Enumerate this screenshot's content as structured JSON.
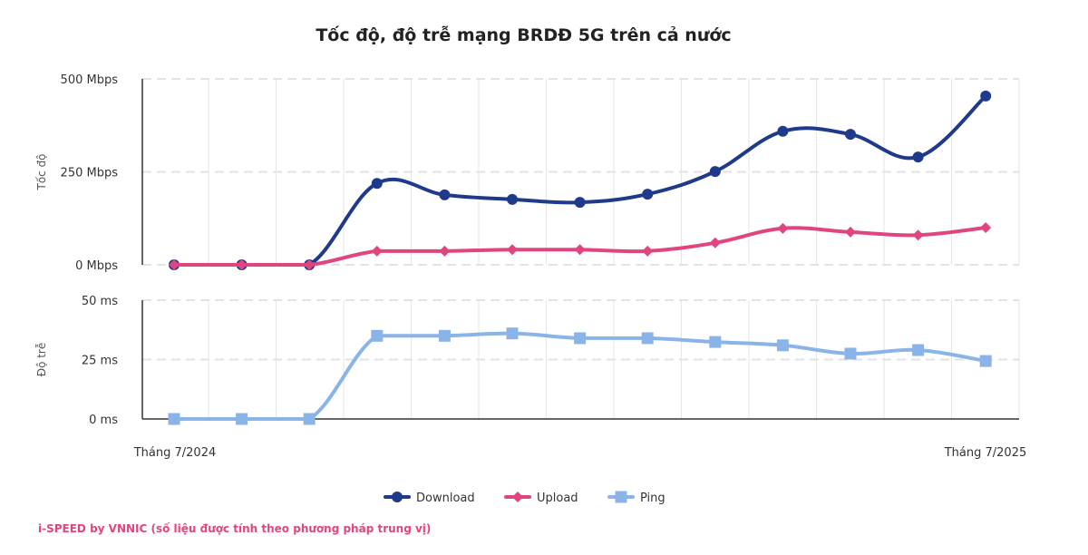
{
  "chart_data": {
    "type": "line",
    "title": "Tốc độ, độ trễ mạng BRDĐ 5G trên cả nước",
    "x_tick_labels": {
      "first": "Tháng 7/2024",
      "last": "Tháng 7/2025"
    },
    "point_count": 13,
    "panels": [
      {
        "ylabel": "Tốc độ",
        "ylim": [
          0,
          500
        ],
        "y_ticks": [
          {
            "value": 0,
            "label": "0 Mbps"
          },
          {
            "value": 250,
            "label": "250 Mbps"
          },
          {
            "value": 500,
            "label": "500 Mbps"
          }
        ],
        "series": [
          {
            "name": "Download",
            "color": "#1f3a8a",
            "marker": "circle",
            "values": [
              0,
              0,
              0,
              219,
              188,
              176,
              168,
              190,
              251,
              359,
              351,
              290,
              454
            ]
          },
          {
            "name": "Upload",
            "color": "#e0457f",
            "marker": "diamond",
            "values": [
              0,
              0,
              0,
              37,
              37,
              41,
              41,
              37,
              59,
              98,
              88,
              80,
              100
            ]
          }
        ]
      },
      {
        "ylabel": "Độ trễ",
        "ylim": [
          0,
          50
        ],
        "y_ticks": [
          {
            "value": 0,
            "label": "0 ms"
          },
          {
            "value": 25,
            "label": "25 ms"
          },
          {
            "value": 50,
            "label": "50 ms"
          }
        ],
        "series": [
          {
            "name": "Ping",
            "color": "#8ab4e8",
            "marker": "square",
            "values": [
              0,
              0,
              0,
              35,
              35,
              36,
              34,
              34,
              32.4,
              31,
              27.5,
              29,
              24.4
            ]
          }
        ]
      }
    ],
    "grid": true,
    "legend": "bottom"
  },
  "footer": "i-SPEED by VNNIC (số liệu được tính theo phương pháp trung vị)"
}
